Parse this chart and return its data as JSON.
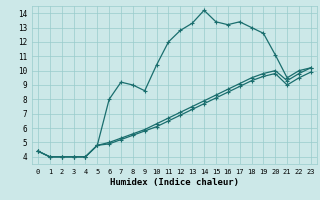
{
  "xlabel": "Humidex (Indice chaleur)",
  "bg_color": "#cce8e8",
  "line_color": "#1a6e6e",
  "grid_color": "#99cccc",
  "xlim": [
    -0.5,
    23.5
  ],
  "ylim": [
    3.5,
    14.5
  ],
  "xticks": [
    0,
    1,
    2,
    3,
    4,
    5,
    6,
    7,
    8,
    9,
    10,
    11,
    12,
    13,
    14,
    15,
    16,
    17,
    18,
    19,
    20,
    21,
    22,
    23
  ],
  "yticks": [
    4,
    5,
    6,
    7,
    8,
    9,
    10,
    11,
    12,
    13,
    14
  ],
  "series1": [
    4.4,
    4.0,
    4.0,
    4.0,
    4.0,
    4.8,
    8.0,
    9.2,
    9.0,
    8.6,
    10.4,
    12.0,
    12.8,
    13.3,
    14.2,
    13.4,
    13.2,
    13.4,
    13.0,
    12.6,
    11.1,
    9.5,
    10.0,
    10.2
  ],
  "series2": [
    4.4,
    4.0,
    4.0,
    4.0,
    4.0,
    4.8,
    5.0,
    5.3,
    5.6,
    5.9,
    6.3,
    6.7,
    7.1,
    7.5,
    7.9,
    8.3,
    8.7,
    9.1,
    9.5,
    9.8,
    10.0,
    9.3,
    9.8,
    10.2
  ],
  "series3": [
    4.4,
    4.0,
    4.0,
    4.0,
    4.0,
    4.8,
    4.9,
    5.2,
    5.5,
    5.8,
    6.1,
    6.5,
    6.9,
    7.3,
    7.7,
    8.1,
    8.5,
    8.9,
    9.3,
    9.6,
    9.8,
    9.0,
    9.5,
    9.9
  ],
  "linewidth": 0.9,
  "markersize": 3.0
}
